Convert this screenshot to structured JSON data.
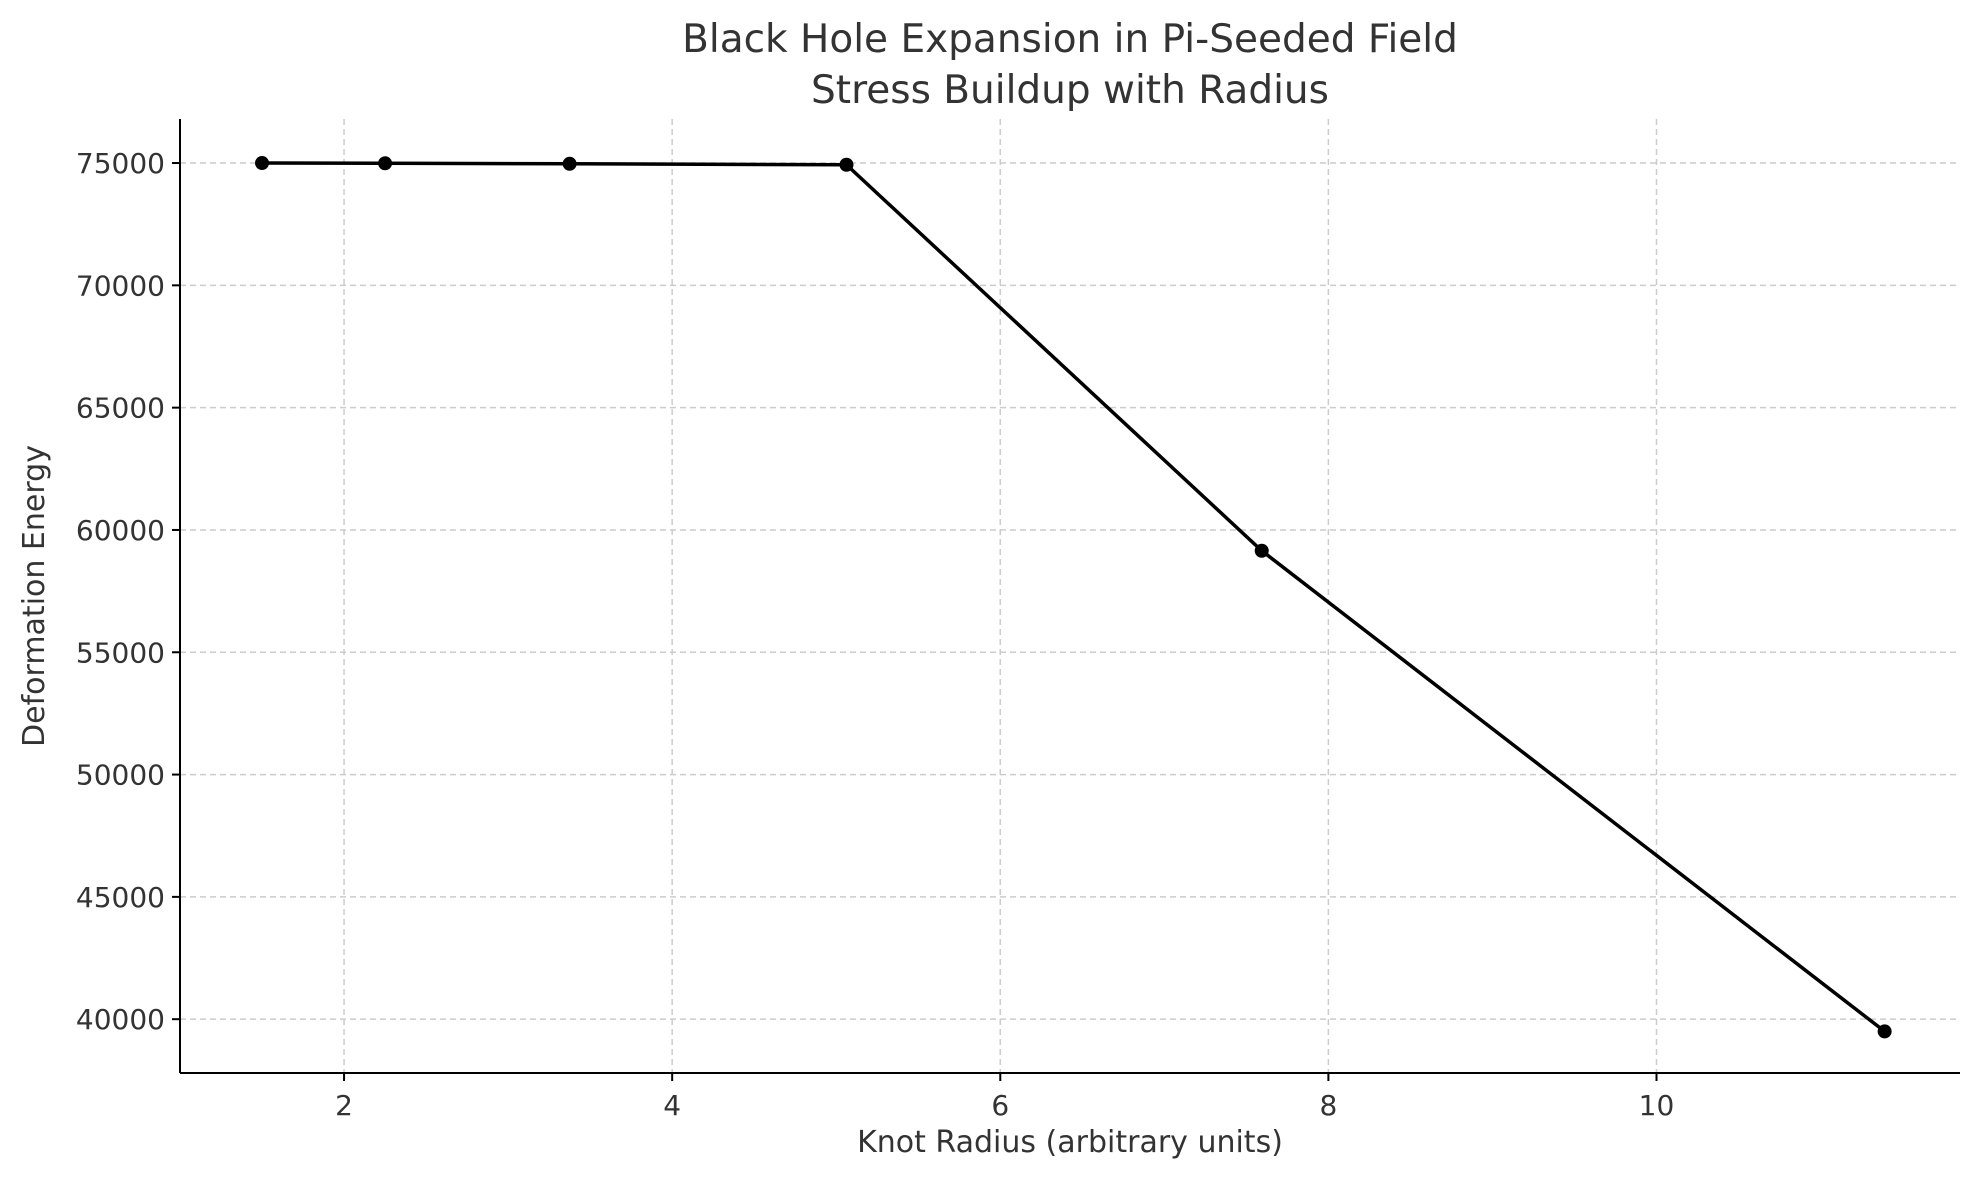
{
  "chart_data": {
    "type": "line",
    "title": "Black Hole Expansion in Pi-Seeded Field",
    "subtitle": "Stress Buildup with Radius",
    "xlabel": "Knot Radius (arbitrary units)",
    "ylabel": "Deformation Energy",
    "xlim": [
      1.0,
      11.85
    ],
    "ylim": [
      37800,
      76800
    ],
    "xticks": [
      2,
      4,
      6,
      8,
      10
    ],
    "yticks": [
      40000,
      45000,
      50000,
      55000,
      60000,
      65000,
      70000,
      75000
    ],
    "grid": true,
    "line_color": "#000000",
    "series": [
      {
        "x": [
          1.5,
          2.25,
          3.375,
          5.0625,
          7.59375,
          11.390625
        ],
        "y": [
          75000,
          74990,
          74970,
          74930,
          59150,
          39500
        ]
      }
    ]
  }
}
